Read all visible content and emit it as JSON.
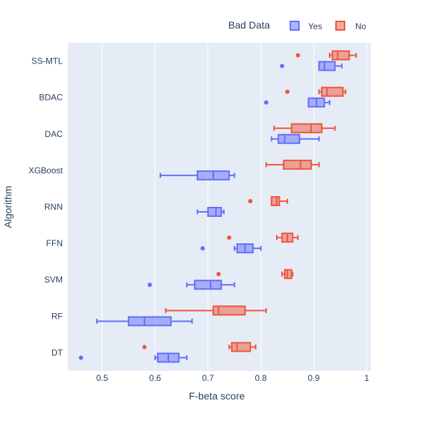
{
  "chart_data": {
    "type": "box",
    "orientation": "horizontal",
    "xlabel": "F-beta score",
    "ylabel": "Algorithm",
    "xlim": [
      0.435,
      1.008
    ],
    "xticks": [
      0.5,
      0.6,
      0.7,
      0.8,
      0.9,
      1
    ],
    "xtick_labels": [
      "0.5",
      "0.6",
      "0.7",
      "0.8",
      "0.9",
      "1"
    ],
    "categories": [
      "SS-MTL",
      "BDAC",
      "DAC",
      "XGBoost",
      "RNN",
      "FFN",
      "SVM",
      "RF",
      "DT"
    ],
    "legend": {
      "title": "Bad Data",
      "position": "top-right"
    },
    "series": [
      {
        "name": "Yes",
        "color": "#636efa",
        "fill": "rgba(99,110,250,0.5)",
        "boxes": [
          {
            "category": "SS-MTL",
            "min": 0.91,
            "q1": 0.91,
            "median": 0.92,
            "q3": 0.94,
            "max": 0.953,
            "outliers": [
              0.84
            ]
          },
          {
            "category": "BDAC",
            "min": 0.89,
            "q1": 0.89,
            "median": 0.905,
            "q3": 0.92,
            "max": 0.93,
            "outliers": [
              0.81
            ]
          },
          {
            "category": "DAC",
            "min": 0.82,
            "q1": 0.833,
            "median": 0.845,
            "q3": 0.873,
            "max": 0.91,
            "outliers": []
          },
          {
            "category": "XGBoost",
            "min": 0.61,
            "q1": 0.68,
            "median": 0.71,
            "q3": 0.74,
            "max": 0.75,
            "outliers": []
          },
          {
            "category": "RNN",
            "min": 0.68,
            "q1": 0.7,
            "median": 0.715,
            "q3": 0.725,
            "max": 0.73,
            "outliers": []
          },
          {
            "category": "FFN",
            "min": 0.75,
            "q1": 0.755,
            "median": 0.77,
            "q3": 0.785,
            "max": 0.8,
            "outliers": [
              0.69
            ]
          },
          {
            "category": "SVM",
            "min": 0.66,
            "q1": 0.675,
            "median": 0.705,
            "q3": 0.725,
            "max": 0.75,
            "outliers": [
              0.59
            ]
          },
          {
            "category": "RF",
            "min": 0.49,
            "q1": 0.55,
            "median": 0.58,
            "q3": 0.63,
            "max": 0.67,
            "outliers": []
          },
          {
            "category": "DT",
            "min": 0.6,
            "q1": 0.605,
            "median": 0.625,
            "q3": 0.645,
            "max": 0.66,
            "outliers": [
              0.46
            ]
          }
        ]
      },
      {
        "name": "No",
        "color": "#ef553b",
        "fill": "rgba(239,85,59,0.5)",
        "boxes": [
          {
            "category": "SS-MTL",
            "min": 0.93,
            "q1": 0.935,
            "median": 0.945,
            "q3": 0.967,
            "max": 0.98,
            "outliers": [
              0.87
            ]
          },
          {
            "category": "BDAC",
            "min": 0.91,
            "q1": 0.915,
            "median": 0.925,
            "q3": 0.955,
            "max": 0.96,
            "outliers": [
              0.85
            ]
          },
          {
            "category": "DAC",
            "min": 0.825,
            "q1": 0.858,
            "median": 0.895,
            "q3": 0.915,
            "max": 0.94,
            "outliers": []
          },
          {
            "category": "XGBoost",
            "min": 0.81,
            "q1": 0.843,
            "median": 0.875,
            "q3": 0.895,
            "max": 0.91,
            "outliers": []
          },
          {
            "category": "RNN",
            "min": 0.82,
            "q1": 0.82,
            "median": 0.83,
            "q3": 0.835,
            "max": 0.85,
            "outliers": [
              0.78
            ]
          },
          {
            "category": "FFN",
            "min": 0.83,
            "q1": 0.84,
            "median": 0.85,
            "q3": 0.86,
            "max": 0.87,
            "outliers": [
              0.74
            ]
          },
          {
            "category": "SVM",
            "min": 0.84,
            "q1": 0.845,
            "median": 0.85,
            "q3": 0.858,
            "max": 0.86,
            "outliers": [
              0.72
            ]
          },
          {
            "category": "RF",
            "min": 0.62,
            "q1": 0.71,
            "median": 0.72,
            "q3": 0.77,
            "max": 0.81,
            "outliers": []
          },
          {
            "category": "DT",
            "min": 0.74,
            "q1": 0.745,
            "median": 0.755,
            "q3": 0.78,
            "max": 0.79,
            "outliers": [
              0.58
            ]
          }
        ]
      }
    ]
  }
}
